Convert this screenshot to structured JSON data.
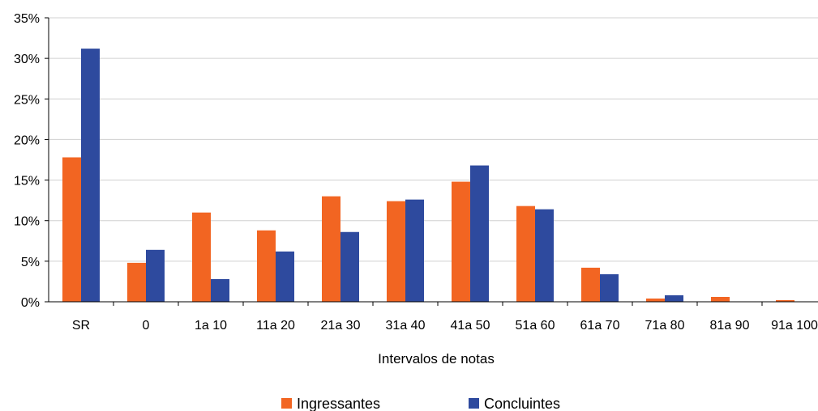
{
  "chart_data": {
    "type": "bar",
    "categories": [
      "SR",
      "0",
      "1a 10",
      "11a 20",
      "21a 30",
      "31a 40",
      "41a 50",
      "51a 60",
      "61a 70",
      "71a 80",
      "81a 90",
      "91a 100"
    ],
    "series": [
      {
        "name": "Ingressantes",
        "color": "#F26522",
        "values": [
          17.8,
          4.8,
          11.0,
          8.8,
          13.0,
          12.4,
          14.8,
          11.8,
          4.2,
          0.4,
          0.6,
          0.2
        ]
      },
      {
        "name": "Concluintes",
        "color": "#2E4A9E",
        "values": [
          31.2,
          6.4,
          2.8,
          6.2,
          8.6,
          12.6,
          16.8,
          11.4,
          3.4,
          0.8,
          0.0,
          0.0
        ]
      }
    ],
    "ylim": [
      0,
      35
    ],
    "yticks": [
      "0%",
      "5%",
      "10%",
      "15%",
      "20%",
      "25%",
      "30%",
      "35%"
    ],
    "xlabel": "Intervalos de notas",
    "ylabel": "",
    "grid": true,
    "legend_position": "bottom"
  }
}
